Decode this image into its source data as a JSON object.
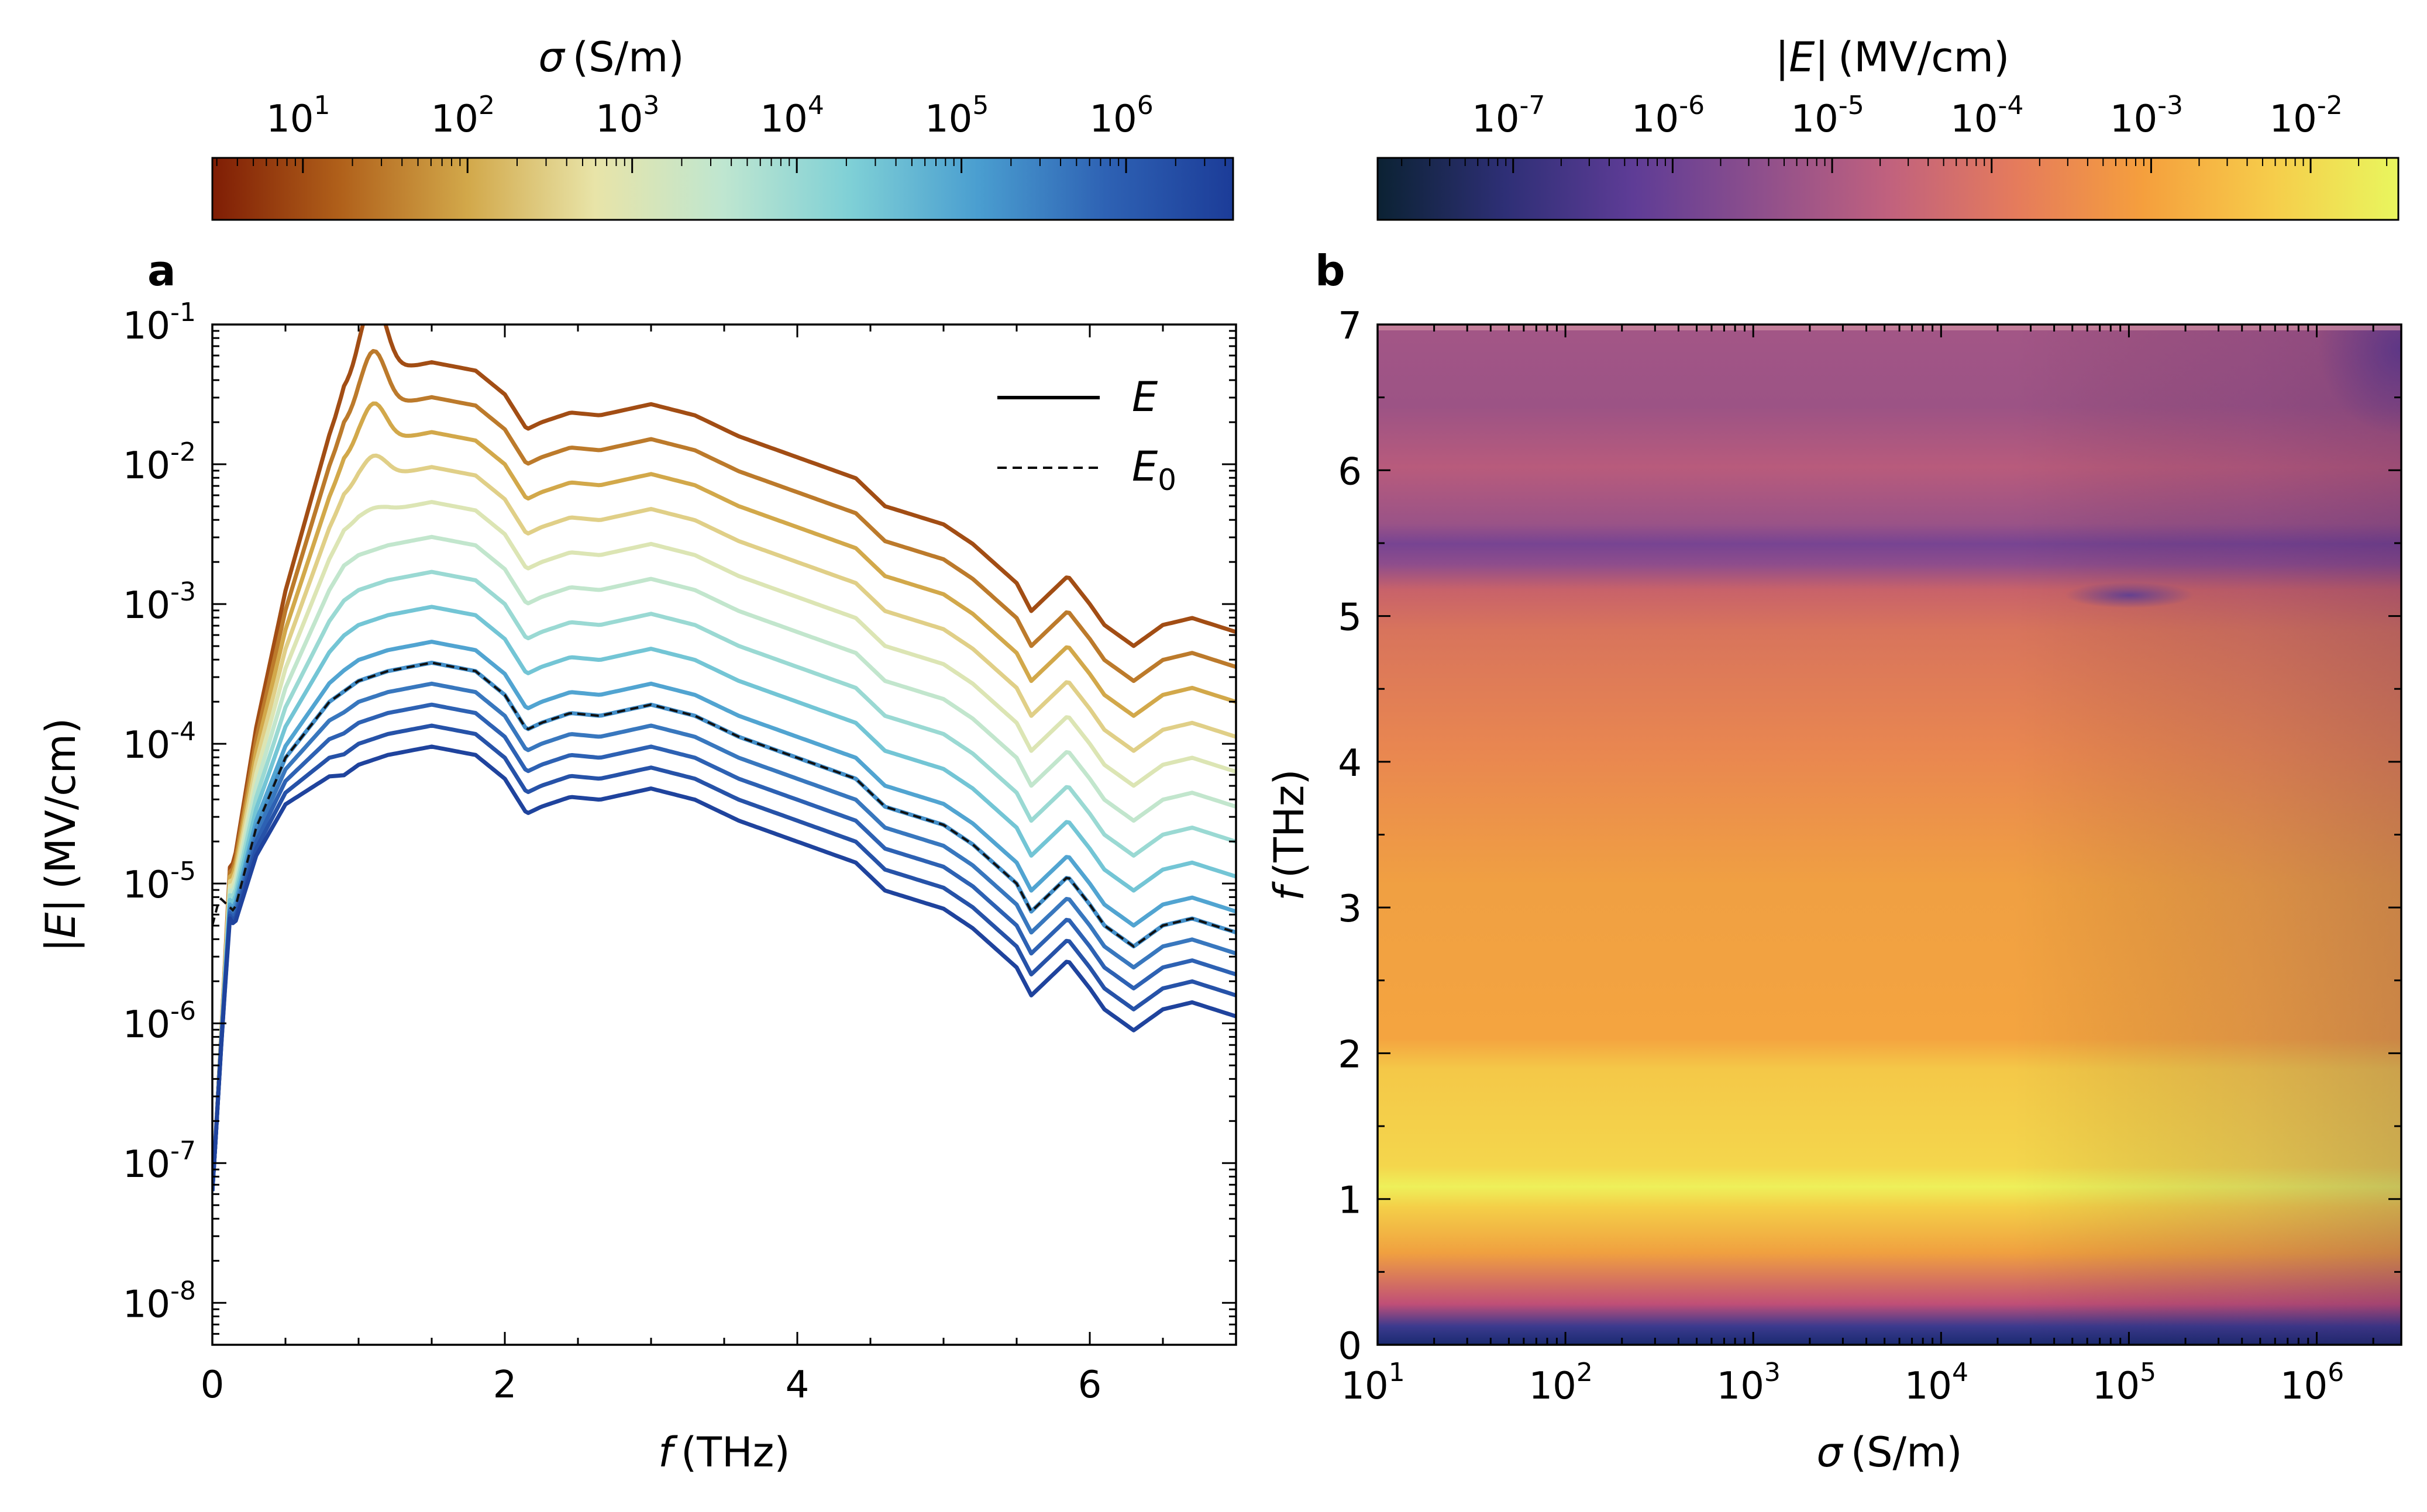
{
  "chart_data": [
    {
      "panel": "a",
      "type": "line",
      "xlabel_var": "f",
      "xlabel_unit": "(THz)",
      "ylabel_var": "E",
      "ylabel_unit": "(MV/cm)",
      "xlim": [
        0,
        7
      ],
      "ylim_log10": [
        -8.3,
        -1
      ],
      "y_scale": "log",
      "x_ticks": [
        0,
        2,
        4,
        6
      ],
      "y_ticks_exp": [
        -8,
        -7,
        -6,
        -5,
        -4,
        -3,
        -2,
        -1
      ],
      "legend": {
        "position": "top-right",
        "entries": [
          {
            "label": "E",
            "style": "solid"
          },
          {
            "label": "E",
            "sub": "0",
            "style": "dashed"
          }
        ]
      },
      "reference_E0": {
        "x": [
          0,
          0.05,
          0.15,
          0.3,
          0.5,
          0.8,
          1.0,
          1.2,
          1.5,
          1.8,
          2.0,
          2.15,
          2.25,
          2.45,
          2.65,
          3.0,
          3.3,
          3.6,
          4.0,
          4.4,
          4.6,
          5.0,
          5.2,
          5.5,
          5.6,
          5.75,
          5.85,
          6.0,
          6.1,
          6.3,
          6.5,
          6.7,
          7.0
        ],
        "log10E": [
          -5.3,
          -5.1,
          -5.2,
          -4.6,
          -4.1,
          -3.7,
          -3.55,
          -3.48,
          -3.42,
          -3.48,
          -3.65,
          -3.9,
          -3.85,
          -3.78,
          -3.8,
          -3.72,
          -3.8,
          -3.95,
          -4.1,
          -4.25,
          -4.45,
          -4.58,
          -4.72,
          -5.0,
          -5.2,
          -5.05,
          -4.95,
          -5.15,
          -5.3,
          -5.45,
          -5.3,
          -5.25,
          -5.35
        ]
      },
      "sigma_series_log10": [
        1,
        1.5,
        2,
        2.5,
        3,
        3.5,
        4,
        4.5,
        5,
        5.3,
        5.6,
        5.9,
        6.2,
        6.5
      ]
    },
    {
      "panel": "b",
      "type": "heatmap",
      "xlabel_var": "σ",
      "xlabel_unit": "(S/m)",
      "ylabel_var": "f",
      "ylabel_unit": "(THz)",
      "x_scale": "log",
      "xlim_log10": [
        1,
        6.45
      ],
      "ylim": [
        0,
        7
      ],
      "x_ticks_exp": [
        1,
        2,
        3,
        4,
        5,
        6
      ],
      "y_ticks": [
        0,
        1,
        2,
        3,
        4,
        5,
        6,
        7
      ]
    }
  ],
  "colorbars": [
    {
      "name": "sigma",
      "label_var": "σ",
      "label_unit": "(S/m)",
      "scale": "log",
      "range_log10": [
        0.45,
        6.65
      ],
      "tick_exp": [
        1,
        2,
        3,
        4,
        5,
        6
      ],
      "colors": [
        "#7f1d05",
        "#b0601a",
        "#d2a84a",
        "#e8e4a8",
        "#bfe6d0",
        "#7fd0d6",
        "#4a9ed0",
        "#2e62b4",
        "#1c3c98"
      ]
    },
    {
      "name": "E",
      "label_var": "E",
      "label_unit": "(MV/cm)",
      "scale": "log",
      "range_log10": [
        -7.85,
        -1.45
      ],
      "tick_exp": [
        -7,
        -6,
        -5,
        -4,
        -3,
        -2
      ],
      "colors": [
        "#0b2233",
        "#2e2f76",
        "#5e3c96",
        "#8e4f8c",
        "#c0617e",
        "#e57b5c",
        "#f59f3d",
        "#f6cc4a",
        "#e9f65e"
      ]
    }
  ],
  "labels": {
    "panel_a": "a",
    "panel_b": "b",
    "base": "10"
  }
}
